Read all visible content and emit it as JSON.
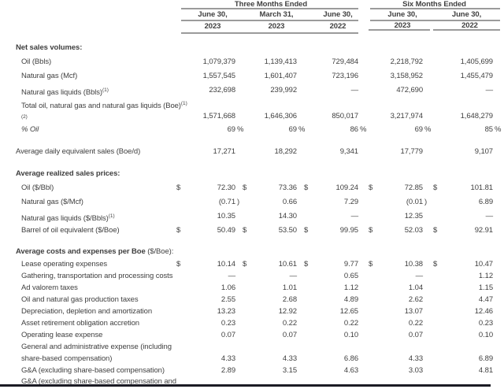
{
  "colors": {
    "text": "#3f3f3f",
    "rule_line": "#9b9b9b",
    "bottom_bar": "#1b1b24"
  },
  "table": {
    "groups": [
      {
        "title": "Three Months Ended",
        "columns": [
          {
            "date": "June 30,",
            "year": "2023"
          },
          {
            "date": "March 31,",
            "year": "2023"
          },
          {
            "date": "June 30,",
            "year": "2022"
          }
        ]
      },
      {
        "title": "Six Months Ended",
        "columns": [
          {
            "date": "June 30,",
            "year": "2023"
          },
          {
            "date": "June 30,",
            "year": "2022"
          }
        ]
      }
    ],
    "rows": [
      {
        "type": "section",
        "label": "Net sales volumes:"
      },
      {
        "type": "item",
        "label": "Oil (Bbls)",
        "values": [
          "1,079,379",
          "1,139,413",
          "729,484",
          "2,218,792",
          "1,405,699"
        ]
      },
      {
        "type": "item",
        "label": "Natural gas (Mcf)",
        "values": [
          "1,557,545",
          "1,601,407",
          "723,196",
          "3,158,952",
          "1,455,479"
        ]
      },
      {
        "type": "item",
        "label": "Natural gas liquids (Bbls)",
        "sup": "(1)",
        "values": [
          "232,698",
          "239,992",
          "—",
          "472,690",
          "—"
        ]
      },
      {
        "type": "item2",
        "label": "Total oil, natural gas and natural gas liquids (Boe)",
        "sup": "(1)",
        "line2_mark": "(2)",
        "values": [
          "1,571,668",
          "1,646,306",
          "850,017",
          "3,217,974",
          "1,648,279"
        ]
      },
      {
        "type": "item",
        "label": "% Oil",
        "italic": true,
        "values": [
          "69",
          "69",
          "86",
          "69",
          "85"
        ],
        "sufall": "%"
      },
      {
        "type": "gap"
      },
      {
        "type": "flush",
        "label": "Average daily equivalent sales (Boe/d)",
        "values": [
          "17,271",
          "18,292",
          "9,341",
          "17,779",
          "9,107"
        ]
      },
      {
        "type": "gap"
      },
      {
        "type": "section",
        "label": "Average realized sales prices:"
      },
      {
        "type": "item",
        "label": "Oil ($/Bbl)",
        "dollar": true,
        "values": [
          "72.30",
          "73.36",
          "109.24",
          "72.85",
          "101.81"
        ]
      },
      {
        "type": "item",
        "label": "Natural gas ($/Mcf)",
        "values": [
          "(0.71",
          "0.66",
          "7.29",
          "(0.01",
          "6.89"
        ],
        "sufs": [
          ")",
          "",
          "",
          ")",
          ""
        ]
      },
      {
        "type": "item",
        "label": "Natural gas liquids ($/Bbls)",
        "sup": "(1)",
        "values": [
          "10.35",
          "14.30",
          "—",
          "12.35",
          "—"
        ]
      },
      {
        "type": "item",
        "label": "Barrel of oil equivalent ($/Boe)",
        "dollar": true,
        "values": [
          "50.49",
          "53.50",
          "99.95",
          "52.03",
          "92.91"
        ]
      },
      {
        "type": "gap"
      },
      {
        "type": "section",
        "label": "Average costs and expenses per Boe ",
        "label_regular": "($/Boe):",
        "h16": true
      },
      {
        "type": "item",
        "compact": true,
        "label": "Lease operating expenses",
        "dollar": true,
        "values": [
          "10.14",
          "10.61",
          "9.77",
          "10.38",
          "10.47"
        ]
      },
      {
        "type": "item",
        "compact": true,
        "label": "Gathering, transportation and processing costs",
        "values": [
          "—",
          "—",
          "0.65",
          "—",
          "1.12"
        ]
      },
      {
        "type": "item",
        "compact": true,
        "label": "Ad valorem taxes",
        "values": [
          "1.06",
          "1.01",
          "1.12",
          "1.04",
          "1.15"
        ]
      },
      {
        "type": "item",
        "compact": true,
        "label": "Oil and natural gas production taxes",
        "values": [
          "2.55",
          "2.68",
          "4.89",
          "2.62",
          "4.47"
        ]
      },
      {
        "type": "item",
        "compact": true,
        "label": "Depreciation, depletion and amortization",
        "values": [
          "13.23",
          "12.92",
          "12.65",
          "13.07",
          "12.46"
        ]
      },
      {
        "type": "item",
        "compact": true,
        "label": "Asset retirement obligation accretion",
        "values": [
          "0.23",
          "0.22",
          "0.22",
          "0.22",
          "0.23"
        ]
      },
      {
        "type": "item",
        "compact": true,
        "label": "Operating lease expense",
        "values": [
          "0.07",
          "0.07",
          "0.10",
          "0.07",
          "0.10"
        ]
      },
      {
        "type": "item2",
        "compact": true,
        "label": "General and administrative expense (including",
        "line2_label": "share-based compensation)",
        "values": [
          "4.33",
          "4.33",
          "6.86",
          "4.33",
          "6.89"
        ]
      },
      {
        "type": "item",
        "compact": true,
        "label": "G&A (excluding share-based compensation)",
        "values": [
          "2.89",
          "3.15",
          "4.63",
          "3.03",
          "4.81"
        ]
      },
      {
        "type": "partial",
        "label": "G&A (excluding share-based compensation and"
      }
    ]
  }
}
